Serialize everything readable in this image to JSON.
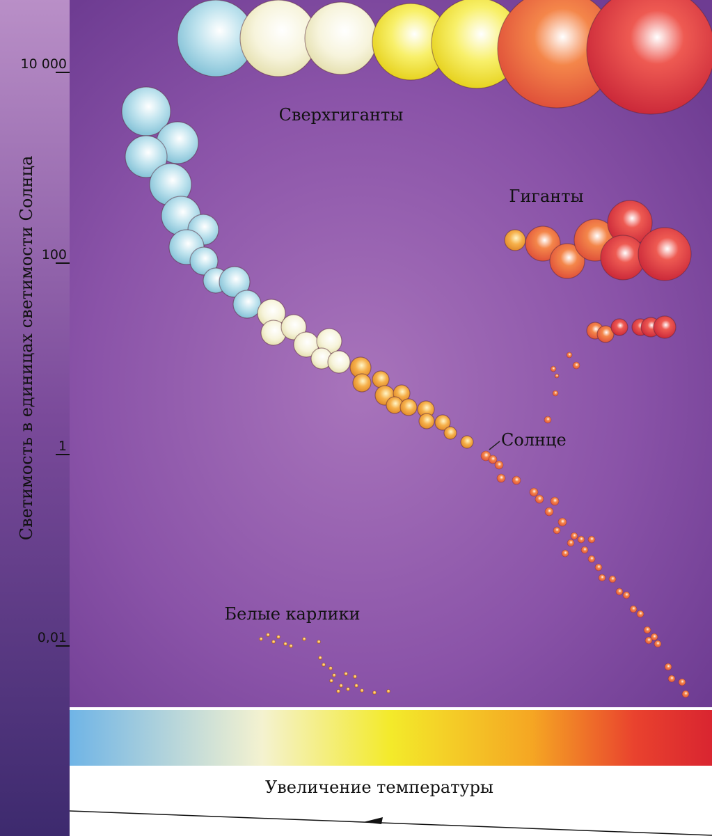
{
  "y_axis": {
    "label": "Светимость в единицах светимости Солнца",
    "ticks": [
      "10 000",
      "100",
      "1",
      "0,01"
    ]
  },
  "labels": {
    "supergiants": "Сверхгиганты",
    "giants": "Гиганты",
    "sun": "Солнце",
    "white_dwarfs": "Белые карлики"
  },
  "x_axis": {
    "label": "Увеличение температуры"
  }
}
